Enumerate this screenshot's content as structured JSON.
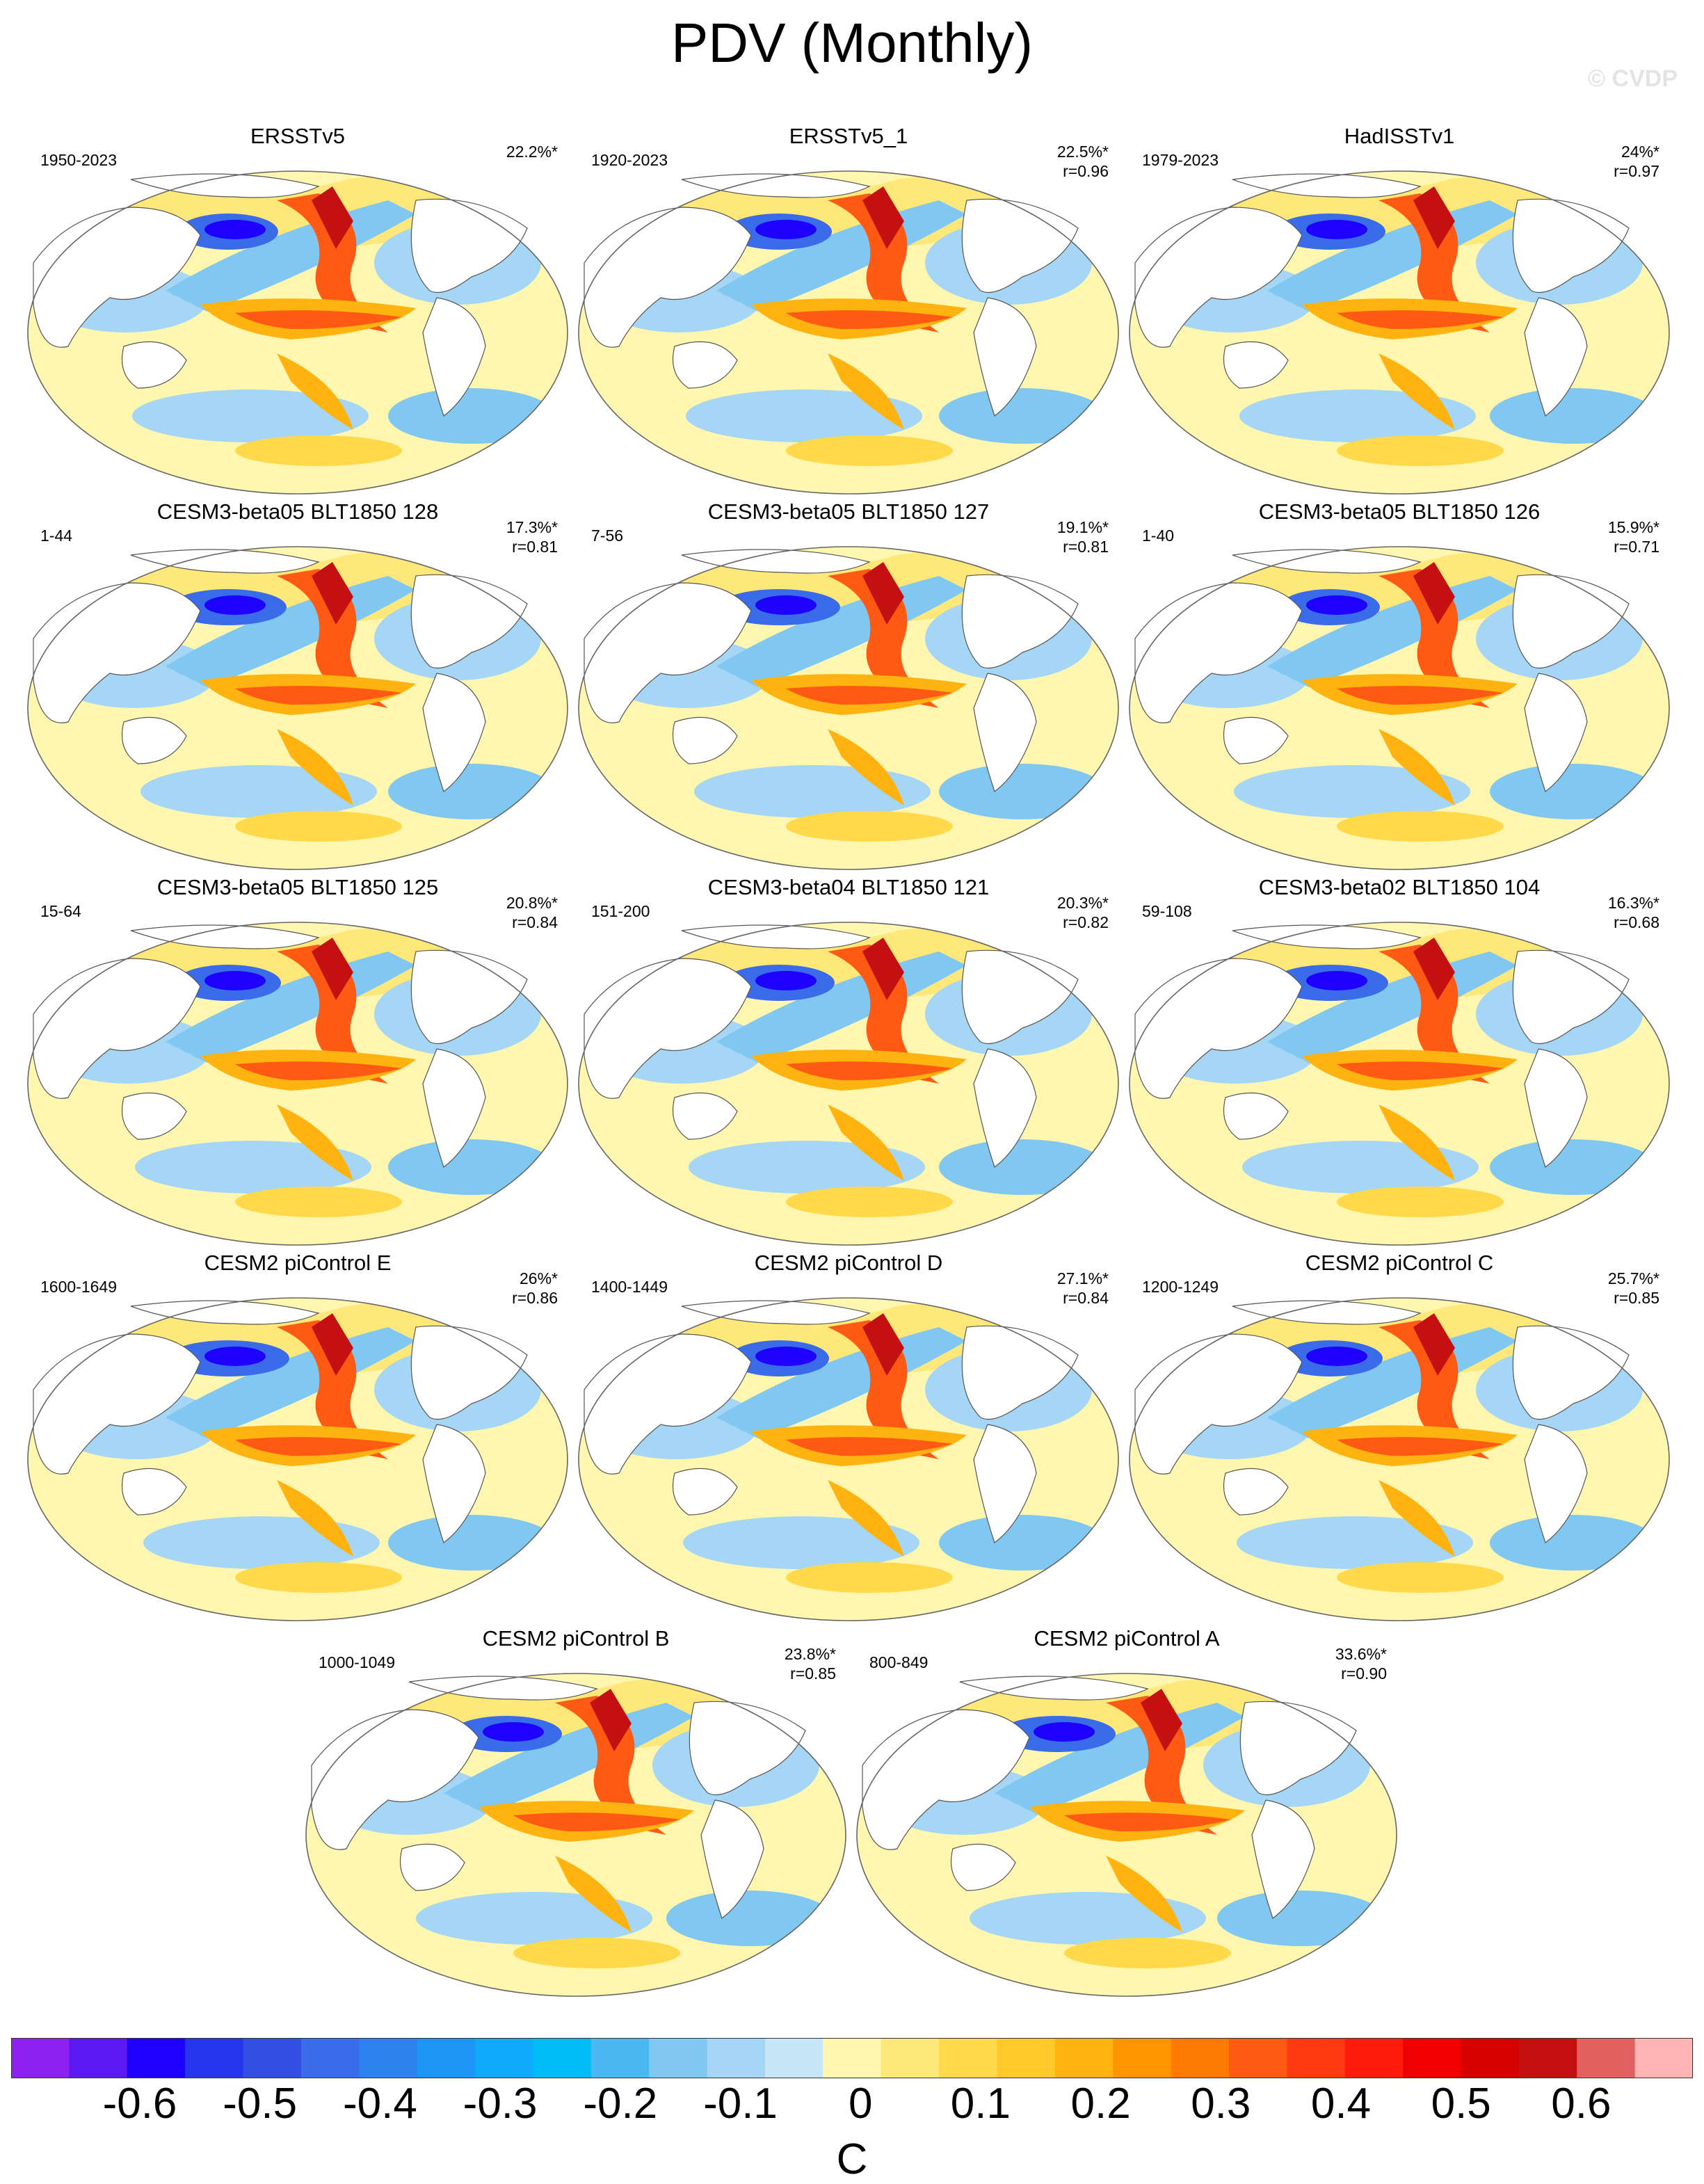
{
  "title": "PDV (Monthly)",
  "watermark": "© CVDP",
  "panels": [
    {
      "name": "ERSSTv5",
      "period": "1950-2023",
      "pct": "22.2%*",
      "r": ""
    },
    {
      "name": "ERSSTv5_1",
      "period": "1920-2023",
      "pct": "22.5%*",
      "r": "r=0.96"
    },
    {
      "name": "HadISSTv1",
      "period": "1979-2023",
      "pct": "24%*",
      "r": "r=0.97"
    },
    {
      "name": "CESM3-beta05 BLT1850 128",
      "period": "1-44",
      "pct": "17.3%*",
      "r": "r=0.81"
    },
    {
      "name": "CESM3-beta05 BLT1850 127",
      "period": "7-56",
      "pct": "19.1%*",
      "r": "r=0.81"
    },
    {
      "name": "CESM3-beta05 BLT1850 126",
      "period": "1-40",
      "pct": "15.9%*",
      "r": "r=0.71"
    },
    {
      "name": "CESM3-beta05 BLT1850 125",
      "period": "15-64",
      "pct": "20.8%*",
      "r": "r=0.84"
    },
    {
      "name": "CESM3-beta04 BLT1850 121",
      "period": "151-200",
      "pct": "20.3%*",
      "r": "r=0.82"
    },
    {
      "name": "CESM3-beta02 BLT1850 104",
      "period": "59-108",
      "pct": "16.3%*",
      "r": "r=0.68"
    },
    {
      "name": "CESM2 piControl E",
      "period": "1600-1649",
      "pct": "26%*",
      "r": "r=0.86"
    },
    {
      "name": "CESM2 piControl D",
      "period": "1400-1449",
      "pct": "27.1%*",
      "r": "r=0.84"
    },
    {
      "name": "CESM2 piControl C",
      "period": "1200-1249",
      "pct": "25.7%*",
      "r": "r=0.85"
    },
    {
      "name": "CESM2 piControl B",
      "period": "1000-1049",
      "pct": "23.8%*",
      "r": "r=0.85"
    },
    {
      "name": "CESM2 piControl A",
      "period": "800-849",
      "pct": "33.6%*",
      "r": "r=0.90"
    }
  ],
  "colorbar": {
    "colors": [
      "#8C21F0",
      "#5A19F2",
      "#1E00FF",
      "#2634EE",
      "#3350E4",
      "#3A6BE8",
      "#2D82F0",
      "#1D96F7",
      "#10AAFA",
      "#00BCF7",
      "#4AB8F2",
      "#80C8F2",
      "#A6D6F5",
      "#C6E6F8",
      "#FFF6B0",
      "#FFE87A",
      "#FFD94A",
      "#FFC92A",
      "#FFB310",
      "#FF9500",
      "#FF7A00",
      "#FF5A14",
      "#FF3A10",
      "#FF1C0A",
      "#F00000",
      "#D60000",
      "#C41010",
      "#E26060",
      "#FFB4B4"
    ],
    "ticks": [
      "-0.6",
      "-0.5",
      "-0.4",
      "-0.3",
      "-0.2",
      "-0.1",
      "0",
      "0.1",
      "0.2",
      "0.3",
      "0.4",
      "0.5",
      "0.6"
    ],
    "units": "C"
  }
}
